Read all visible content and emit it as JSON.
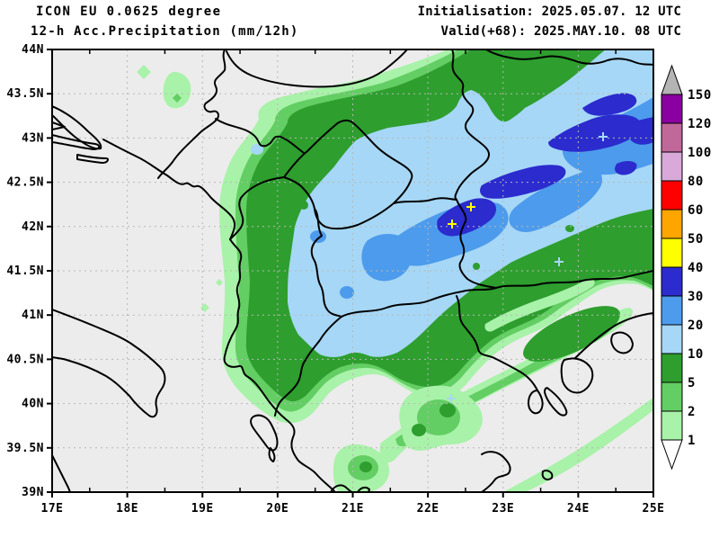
{
  "header": {
    "model": "ICON EU 0.0625 degree",
    "product": "12-h Acc.Precipitation (mm/12h)",
    "initialisation": "Initialisation: 2025.05.07. 12 UTC",
    "valid": "Valid(+68): 2025.MAY.10. 08 UTC"
  },
  "map": {
    "lat_ticks": [
      "44N",
      "43.5N",
      "43N",
      "42.5N",
      "42N",
      "41.5N",
      "41N",
      "40.5N",
      "40N",
      "39.5N",
      "39N"
    ],
    "lon_ticks": [
      "17E",
      "18E",
      "19E",
      "20E",
      "21E",
      "22E",
      "23E",
      "24E",
      "25E"
    ]
  },
  "legend": {
    "values_top_to_bottom": [
      "150",
      "120",
      "100",
      "80",
      "60",
      "50",
      "40",
      "30",
      "20",
      "10",
      "5",
      "2",
      "1"
    ],
    "cell_colors_top_to_bottom": [
      "purple",
      "mauve",
      "lilac",
      "red",
      "orange",
      "yellow",
      "db",
      "mb",
      "lb",
      "dg",
      "mg",
      "lg"
    ],
    "overflow_color": "#B4B4B4",
    "underflow_color": "#FFFFFF"
  },
  "colors": {
    "bg_map": "#ECECEC",
    "frame": "#000000",
    "grid": "#B8B8B8",
    "border": "#000000",
    "lg": "#A9F2A9",
    "mg": "#63CE63",
    "dg": "#2E9E2E",
    "lb": "#A6D7F6",
    "mb": "#4D9BEC",
    "db": "#2B2BCE",
    "yellow": "#FFFF00",
    "orange": "#FFA500",
    "red": "#FF0000",
    "lilac": "#D9A9D9",
    "mauve": "#C1689B",
    "purple": "#8B00A0",
    "over": "#B4B4B4",
    "under": "#FFFFFF",
    "max_marker": "#FFFF00",
    "wet_marker": "#A6D7F6"
  }
}
